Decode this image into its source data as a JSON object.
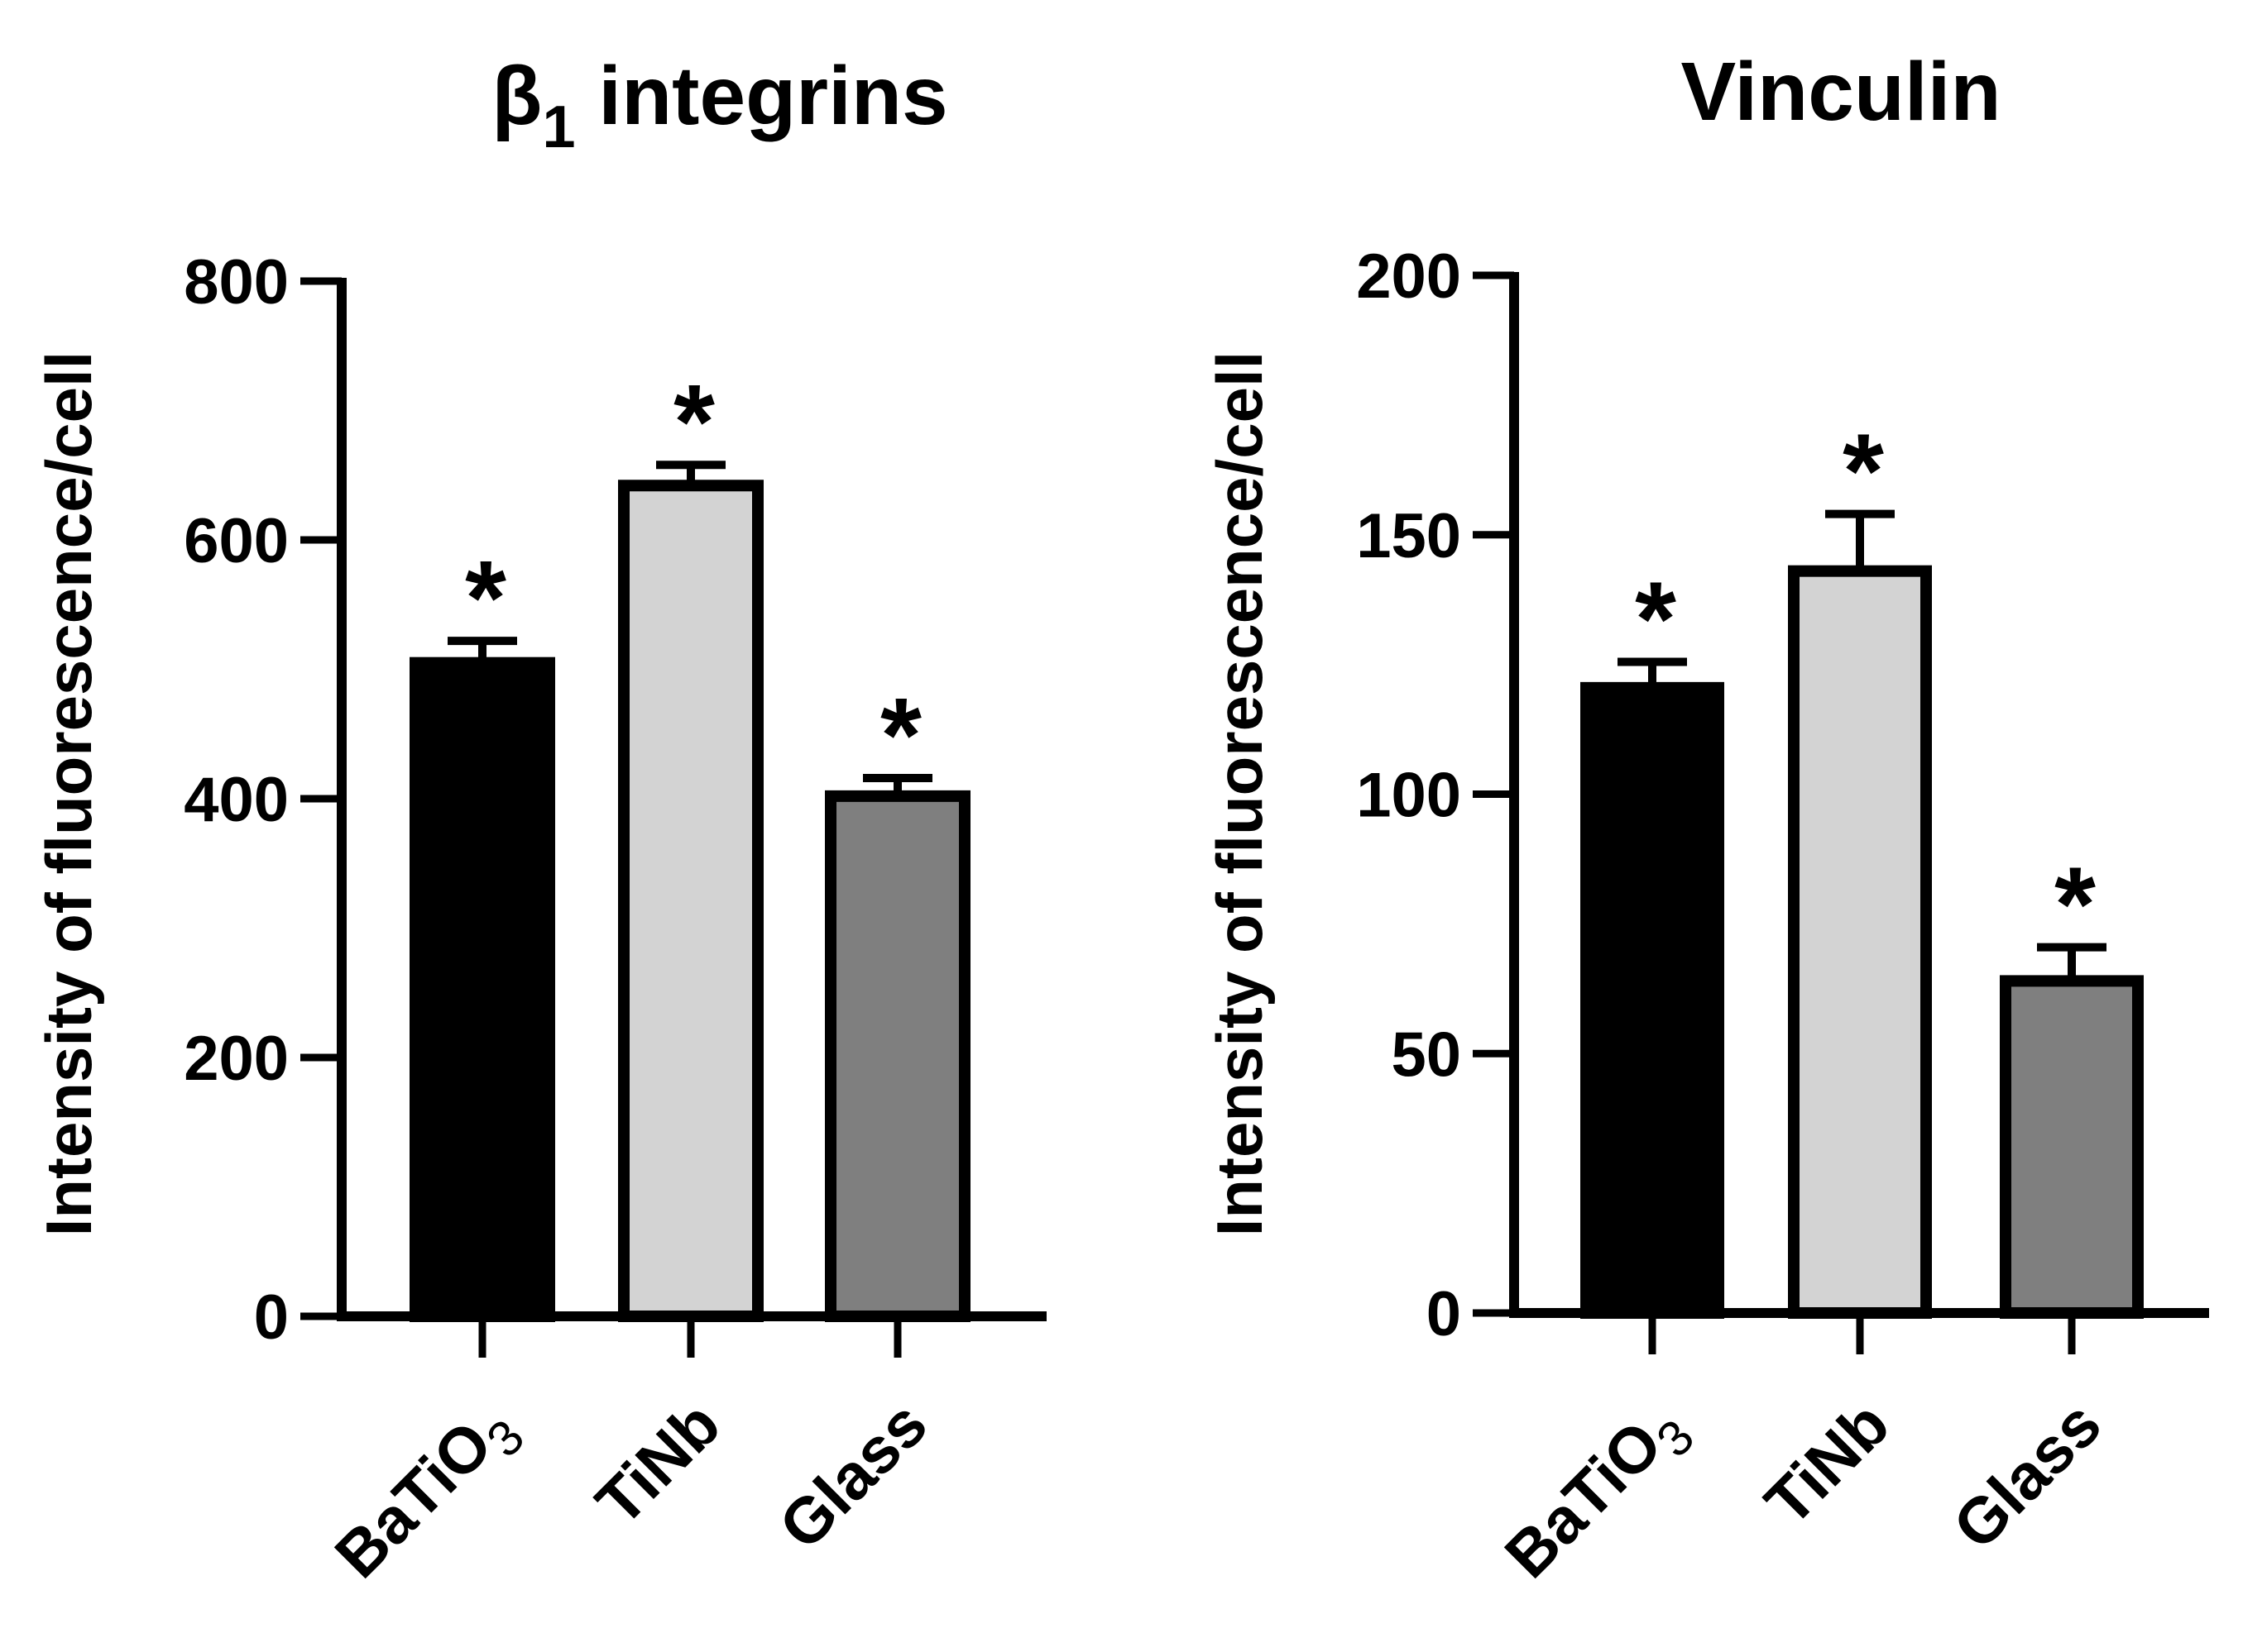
{
  "chart_data": [
    {
      "type": "bar",
      "title": "β₁ integrins",
      "title_main": "β",
      "title_sub": "1",
      "title_rest": " integrins",
      "ylabel": "Intensity of fluorescence/cell",
      "xlabel": "",
      "categories": [
        "BaTiO3",
        "TiNb",
        "Glass"
      ],
      "category_labels": [
        {
          "main": "BaTiO",
          "sub": "3"
        },
        {
          "main": "TiNb",
          "sub": ""
        },
        {
          "main": "Glass",
          "sub": ""
        }
      ],
      "values": [
        505,
        642,
        402
      ],
      "errors": [
        17,
        16,
        14
      ],
      "annotations": [
        "*",
        "*",
        "*"
      ],
      "bar_colors": [
        "#000000",
        "#d3d3d3",
        "#7f7f7f"
      ],
      "ylim": [
        0,
        800
      ],
      "yticks": [
        0,
        200,
        400,
        600,
        800
      ],
      "ytick_labels": [
        "0",
        "200",
        "400",
        "600",
        "800"
      ],
      "grid": false,
      "legend": "none"
    },
    {
      "type": "bar",
      "title": "Vinculin",
      "title_main": "Vinculin",
      "title_sub": "",
      "title_rest": "",
      "ylabel": "Intensity of fluorescence/cell",
      "xlabel": "",
      "categories": [
        "BaTiO3",
        "TiNb",
        "Glass"
      ],
      "category_labels": [
        {
          "main": "BaTiO",
          "sub": "3"
        },
        {
          "main": "TiNb",
          "sub": ""
        },
        {
          "main": "Glass",
          "sub": ""
        }
      ],
      "values": [
        120.5,
        143,
        64
      ],
      "errors": [
        5,
        11,
        6.5
      ],
      "annotations": [
        "*",
        "*",
        "*"
      ],
      "bar_colors": [
        "#000000",
        "#d3d3d3",
        "#7f7f7f"
      ],
      "ylim": [
        0,
        200
      ],
      "yticks": [
        0,
        50,
        100,
        150,
        200
      ],
      "ytick_labels": [
        "0",
        "50",
        "100",
        "150",
        "200"
      ],
      "grid": false,
      "legend": "none"
    }
  ]
}
